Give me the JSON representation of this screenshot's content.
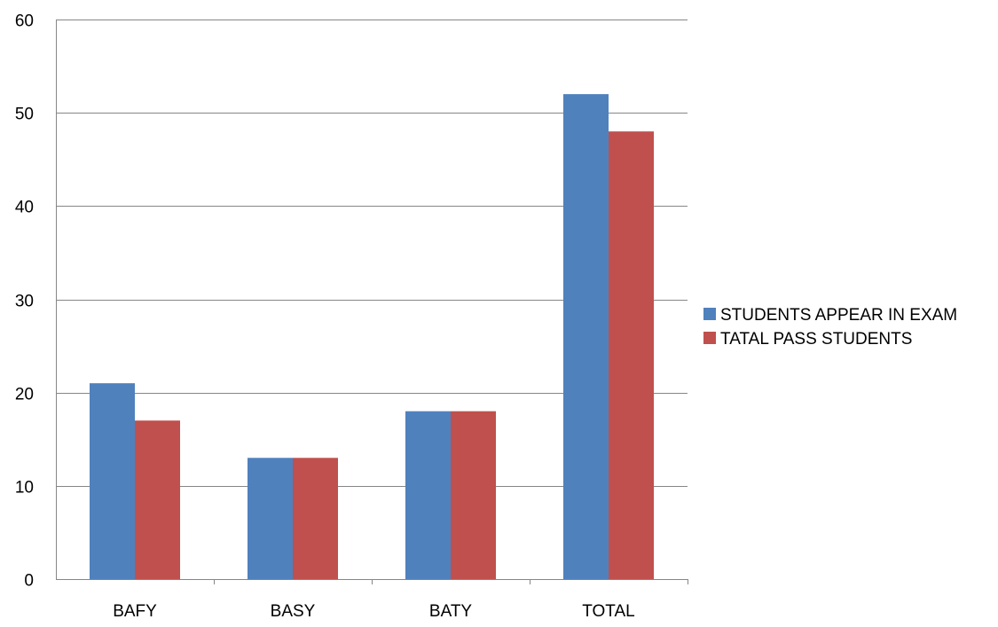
{
  "chart_data": {
    "type": "bar",
    "title": "",
    "xlabel": "",
    "ylabel": "",
    "categories": [
      "BAFY",
      "BASY",
      "BATY",
      "TOTAL"
    ],
    "series": [
      {
        "name": "STUDENTS APPEAR IN EXAM",
        "values": [
          21,
          13,
          18,
          52
        ],
        "color": "#4F81BD"
      },
      {
        "name": "TATAL PASS STUDENTS",
        "values": [
          17,
          13,
          18,
          48
        ],
        "color": "#C0504D"
      }
    ],
    "ylim": [
      0,
      60
    ],
    "yticks": [
      0,
      10,
      20,
      30,
      40,
      50,
      60
    ],
    "grid": true,
    "legend_position": "right"
  }
}
